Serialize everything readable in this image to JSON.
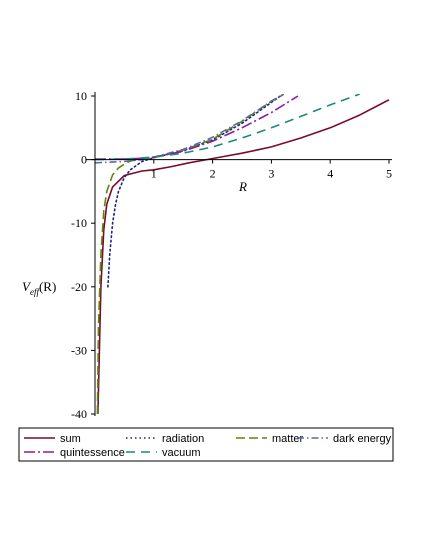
{
  "chart_data": {
    "type": "line",
    "xlabel": "R",
    "ylabel": "V_eff(R)",
    "ylabel_parts": {
      "main": "V",
      "sub": "eff",
      "arg": "(R)"
    },
    "xlim": [
      0,
      5
    ],
    "ylim": [
      -40,
      10
    ],
    "xticks": [
      1,
      2,
      3,
      4,
      5
    ],
    "yticks": [
      10,
      0,
      -10,
      -20,
      -30,
      -40
    ],
    "grid": false,
    "legend_position": "bottom",
    "series": [
      {
        "name": "sum",
        "color": "#7a0a2e",
        "dash": "solid",
        "x": [
          0.05,
          0.08,
          0.1,
          0.15,
          0.2,
          0.3,
          0.5,
          0.8,
          1.0,
          1.3,
          1.6,
          1.9,
          2.2,
          2.5,
          3.0,
          3.5,
          4.0,
          4.5,
          5.0
        ],
        "y": [
          -40,
          -28,
          -20,
          -11,
          -7,
          -4.3,
          -2.5,
          -1.8,
          -1.6,
          -1.1,
          -0.5,
          0,
          0.5,
          1.0,
          2.0,
          3.4,
          5.0,
          7.0,
          9.4
        ]
      },
      {
        "name": "radiation",
        "color": "#1a237e",
        "dash": "dotted",
        "x": [
          0.22,
          0.25,
          0.3,
          0.35,
          0.4,
          0.5,
          0.6,
          0.8,
          1.0,
          1.5,
          2.0,
          2.5,
          3.0,
          3.2
        ],
        "y": [
          -20,
          -15,
          -10,
          -7,
          -5,
          -2.8,
          -1.6,
          -0.3,
          0.3,
          1.4,
          3.1,
          5.7,
          9.0,
          10.3
        ]
      },
      {
        "name": "matter",
        "color": "#5a8a0a",
        "dash": "longdash",
        "x": [
          0.04,
          0.06,
          0.1,
          0.15,
          0.2,
          0.3,
          0.4,
          0.5,
          0.6,
          0.8,
          1.0,
          1.5,
          2.0,
          2.5,
          3.0,
          3.2
        ],
        "y": [
          -40,
          -26,
          -15,
          -8,
          -5,
          -2.4,
          -1.3,
          -0.7,
          -0.2,
          0.1,
          0.3,
          1.5,
          3.2,
          6.0,
          9.2,
          10.2
        ]
      },
      {
        "name": "dark energy",
        "color": "#5b6aa8",
        "dash": "dashdot",
        "x": [
          0.0,
          0.5,
          0.8,
          1.0,
          1.5,
          2.0,
          2.5,
          3.0,
          3.2
        ],
        "y": [
          -0.5,
          -0.3,
          0,
          0.4,
          1.6,
          3.5,
          6.1,
          9.2,
          10.3
        ]
      },
      {
        "name": "quintessence",
        "color": "#8a1aa8",
        "dash": "dashdotlong",
        "x": [
          0.0,
          0.5,
          0.8,
          1.0,
          1.5,
          2.0,
          2.5,
          3.0,
          3.45
        ],
        "y": [
          0.1,
          0.1,
          0.2,
          0.4,
          1.3,
          2.9,
          5.0,
          7.4,
          10.0
        ]
      },
      {
        "name": "vacuum",
        "color": "#1a8a7a",
        "dash": "dashed",
        "x": [
          0.0,
          0.5,
          1.0,
          1.5,
          2.0,
          2.5,
          3.0,
          3.5,
          4.0,
          4.5
        ],
        "y": [
          0,
          0.1,
          0.4,
          1.0,
          2.0,
          3.4,
          5.0,
          6.8,
          8.6,
          10.3
        ]
      }
    ]
  }
}
